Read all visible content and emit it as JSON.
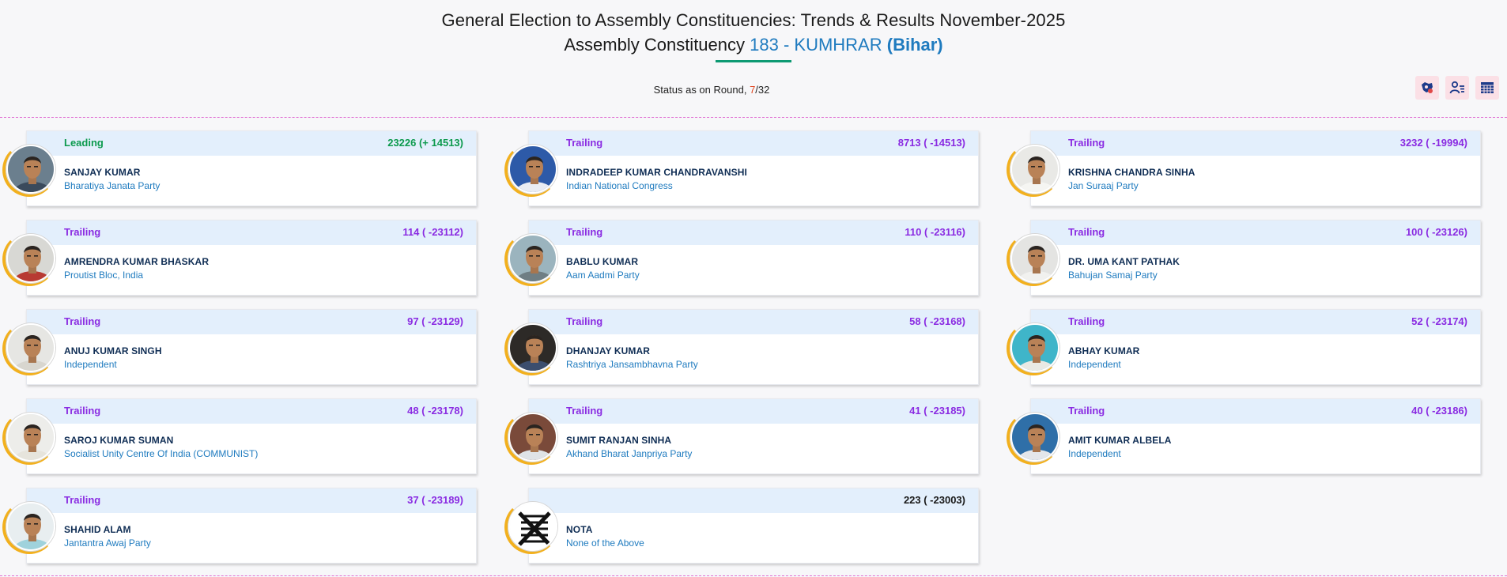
{
  "header": {
    "title": "General Election to Assembly Constituencies: Trends & Results November-2025",
    "ac_prefix": "Assembly Constituency",
    "ac_code_name": "183 - KUMHRAR",
    "ac_state": "(Bihar)"
  },
  "status": {
    "label": "Status as on Round,",
    "round_current": "7",
    "round_total": "/32"
  },
  "tools": [
    {
      "icon": "constituency-map-icon"
    },
    {
      "icon": "candidate-filter-icon"
    },
    {
      "icon": "table-view-icon"
    }
  ],
  "candidates": [
    {
      "status": "Leading",
      "votes": "23226 (+ 14513)",
      "name": "SANJAY KUMAR",
      "party": "Bharatiya Janata Party",
      "bg": "#6b7f8e",
      "shirt": "#3a4a5c"
    },
    {
      "status": "Trailing",
      "votes": "8713 ( -14513)",
      "name": "INDRADEEP KUMAR CHANDRAVANSHI",
      "party": "Indian National Congress",
      "bg": "#2d5aa8",
      "shirt": "#e9ecf2"
    },
    {
      "status": "Trailing",
      "votes": "3232 ( -19994)",
      "name": "KRISHNA CHANDRA SINHA",
      "party": "Jan Suraaj Party",
      "bg": "#e9e9e6",
      "shirt": "#f5f5f2"
    },
    {
      "status": "Trailing",
      "votes": "114 ( -23112)",
      "name": "AMRENDRA KUMAR BHASKAR",
      "party": "Proutist Bloc, India",
      "bg": "#d8d8d4",
      "shirt": "#b83a32"
    },
    {
      "status": "Trailing",
      "votes": "110 ( -23116)",
      "name": "BABLU KUMAR",
      "party": "Aam Aadmi Party",
      "bg": "#9bb4be",
      "shirt": "#6f7e84"
    },
    {
      "status": "Trailing",
      "votes": "100 ( -23126)",
      "name": "DR. UMA KANT PATHAK",
      "party": "Bahujan Samaj Party",
      "bg": "#e4e4e2",
      "shirt": "#f1f1ef"
    },
    {
      "status": "Trailing",
      "votes": "97 ( -23129)",
      "name": "ANUJ KUMAR SINGH",
      "party": "Independent",
      "bg": "#e6e6e3",
      "shirt": "#d8d6cf"
    },
    {
      "status": "Trailing",
      "votes": "58 ( -23168)",
      "name": "DHANJAY KUMAR",
      "party": "Rashtriya Jansambhavna Party",
      "bg": "#2d2a27",
      "shirt": "#3c4e6e"
    },
    {
      "status": "Trailing",
      "votes": "52 ( -23174)",
      "name": "ABHAY KUMAR",
      "party": "Independent",
      "bg": "#3fb5c9",
      "shirt": "#e9e9e4"
    },
    {
      "status": "Trailing",
      "votes": "48 ( -23178)",
      "name": "SAROJ KUMAR SUMAN",
      "party": "Socialist Unity Centre Of India (COMMUNIST)",
      "bg": "#ededea",
      "shirt": "#e6e4dc"
    },
    {
      "status": "Trailing",
      "votes": "41 ( -23185)",
      "name": "SUMIT RANJAN SINHA",
      "party": "Akhand Bharat Janpriya Party",
      "bg": "#7a4a3a",
      "shirt": "#dfe3e6"
    },
    {
      "status": "Trailing",
      "votes": "40 ( -23186)",
      "name": "AMIT KUMAR ALBELA",
      "party": "Independent",
      "bg": "#2f6fa8",
      "shirt": "#e4e6ea"
    },
    {
      "status": "Trailing",
      "votes": "37 ( -23189)",
      "name": "SHAHID ALAM",
      "party": "Jantantra Awaj Party",
      "bg": "#e8eef0",
      "shirt": "#9fd2dc"
    },
    {
      "status": "",
      "votes": "223 ( -23003)",
      "name": "NOTA",
      "party": "None of the Above",
      "bg": "#ffffff",
      "shirt": "#ffffff",
      "nota": true
    }
  ],
  "colors": {
    "leading": "#0d9a4e",
    "trailing": "#8a2be2",
    "accent": "#1f7bbf",
    "ring": "#f2b01e"
  }
}
